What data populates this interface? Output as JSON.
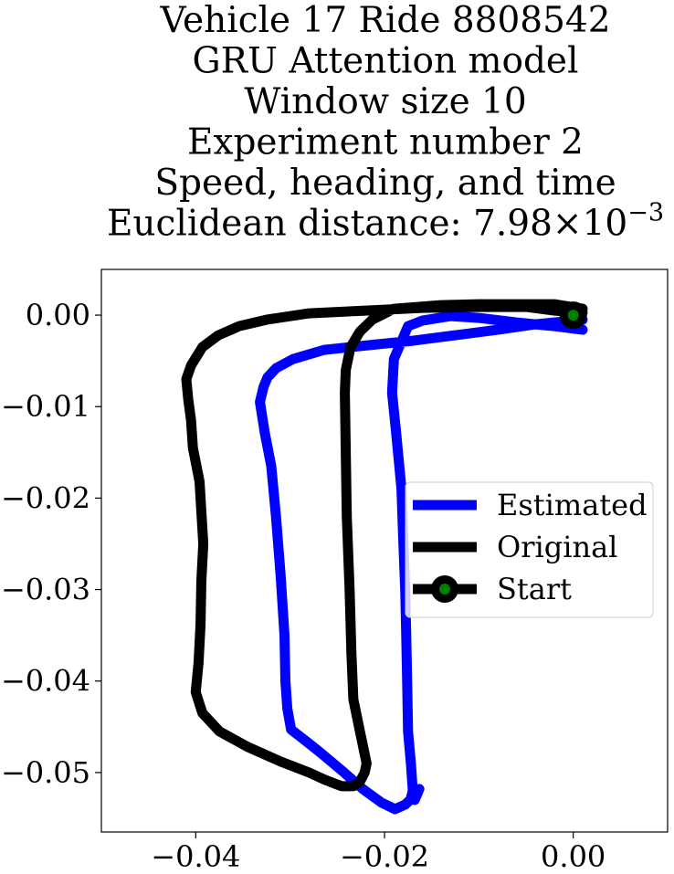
{
  "chart_data": {
    "type": "line",
    "title_lines": [
      "Vehicle 17 Ride 8808542",
      "GRU Attention model",
      "Window size 10",
      "Experiment number 2",
      "Speed, heading, and time",
      "Euclidean distance: 7.98×10"
    ],
    "title_exponent": "−3",
    "xlabel": "",
    "ylabel": "",
    "xlim": [
      -0.05,
      0.01
    ],
    "ylim": [
      -0.0565,
      0.005
    ],
    "x_ticks": [
      -0.04,
      -0.02,
      0.0
    ],
    "x_tick_labels": [
      "−0.04",
      "−0.02",
      "0.00"
    ],
    "y_ticks": [
      0.0,
      -0.01,
      -0.02,
      -0.03,
      -0.04,
      -0.05
    ],
    "y_tick_labels": [
      "0.00",
      "−0.01",
      "−0.02",
      "−0.03",
      "−0.04",
      "−0.05"
    ],
    "grid": false,
    "legend_position": "center-right",
    "series": [
      {
        "name": "Estimated",
        "color": "#0000ff",
        "x": [
          0.001,
          -0.002,
          -0.006,
          -0.01,
          -0.013,
          -0.016,
          -0.0175,
          -0.019,
          -0.0192,
          -0.0188,
          -0.0182,
          -0.018,
          -0.0178,
          -0.0177,
          -0.0176,
          -0.0175,
          -0.0172,
          -0.017,
          -0.0172,
          -0.0168,
          -0.0163,
          -0.0168,
          -0.0178,
          -0.0189,
          -0.0203,
          -0.0223,
          -0.0245,
          -0.0268,
          -0.0284,
          -0.0299,
          -0.0303,
          -0.0305,
          -0.0306,
          -0.031,
          -0.0315,
          -0.032,
          -0.0327,
          -0.0332,
          -0.0328,
          -0.0324,
          -0.0315,
          -0.0297,
          -0.0264,
          -0.0218,
          -0.017,
          -0.0125,
          -0.008,
          -0.004,
          0.001
        ],
        "y": [
          -0.0016,
          -0.0012,
          -0.0008,
          -0.0003,
          -0.0001,
          -0.0006,
          -0.0012,
          -0.0048,
          -0.0085,
          -0.0125,
          -0.019,
          -0.025,
          -0.03,
          -0.035,
          -0.04,
          -0.0455,
          -0.049,
          -0.052,
          -0.0528,
          -0.053,
          -0.0518,
          -0.0525,
          -0.0535,
          -0.054,
          -0.0533,
          -0.0518,
          -0.0498,
          -0.0478,
          -0.0465,
          -0.0453,
          -0.043,
          -0.04,
          -0.035,
          -0.0285,
          -0.022,
          -0.0165,
          -0.0128,
          -0.0095,
          -0.0078,
          -0.0068,
          -0.0058,
          -0.0048,
          -0.0038,
          -0.0033,
          -0.0028,
          -0.0022,
          -0.0016,
          -0.001,
          -0.0005
        ]
      },
      {
        "name": "Original",
        "color": "#000000",
        "x": [
          0.001,
          -0.002,
          -0.006,
          -0.01,
          -0.014,
          -0.019,
          -0.0213,
          -0.0226,
          -0.0236,
          -0.0241,
          -0.0242,
          -0.0241,
          -0.024,
          -0.0237,
          -0.0235,
          -0.0233,
          -0.0226,
          -0.0222,
          -0.0219,
          -0.0221,
          -0.0226,
          -0.0233,
          -0.0238,
          -0.0245,
          -0.0253,
          -0.0263,
          -0.028,
          -0.031,
          -0.0345,
          -0.0375,
          -0.0393,
          -0.04,
          -0.0397,
          -0.0395,
          -0.0394,
          -0.0392,
          -0.0396,
          -0.0403,
          -0.0405,
          -0.0408,
          -0.041,
          -0.0405,
          -0.0393,
          -0.0376,
          -0.0354,
          -0.0325,
          -0.028,
          -0.022,
          -0.016,
          -0.01,
          -0.005,
          -0.002,
          0.001
        ],
        "y": [
          0.0007,
          0.0012,
          0.0012,
          0.0012,
          0.0011,
          0.0007,
          -0.0005,
          -0.0018,
          -0.0035,
          -0.006,
          -0.0085,
          -0.015,
          -0.022,
          -0.03,
          -0.037,
          -0.042,
          -0.0455,
          -0.0475,
          -0.049,
          -0.05,
          -0.051,
          -0.0515,
          -0.0515,
          -0.0515,
          -0.0512,
          -0.0508,
          -0.05,
          -0.0488,
          -0.0472,
          -0.0455,
          -0.0435,
          -0.0412,
          -0.038,
          -0.034,
          -0.029,
          -0.025,
          -0.0182,
          -0.0145,
          -0.0115,
          -0.0092,
          -0.007,
          -0.0055,
          -0.0035,
          -0.0022,
          -0.0012,
          -0.0005,
          0.0002,
          0.0005,
          0.0008,
          0.0009,
          0.0009,
          0.0005,
          0.0003
        ]
      }
    ],
    "start_marker": {
      "name": "Start",
      "x": 0.0,
      "y": 0.0,
      "outer_color": "#000000",
      "inner_color": "#008000"
    }
  }
}
